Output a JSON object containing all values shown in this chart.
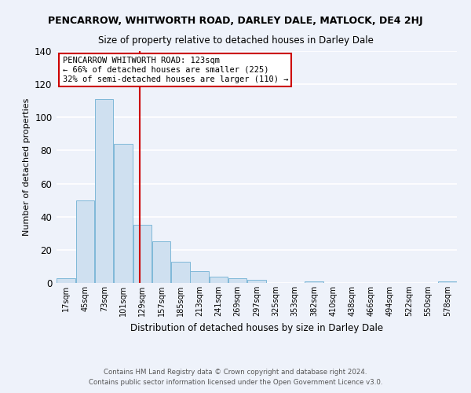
{
  "title": "PENCARROW, WHITWORTH ROAD, DARLEY DALE, MATLOCK, DE4 2HJ",
  "subtitle": "Size of property relative to detached houses in Darley Dale",
  "xlabel": "Distribution of detached houses by size in Darley Dale",
  "ylabel": "Number of detached properties",
  "bar_color": "#cfe0f0",
  "bar_edge_color": "#7fb8d8",
  "background_color": "#eef2fa",
  "grid_color": "#ffffff",
  "tick_labels": [
    "17sqm",
    "45sqm",
    "73sqm",
    "101sqm",
    "129sqm",
    "157sqm",
    "185sqm",
    "213sqm",
    "241sqm",
    "269sqm",
    "297sqm",
    "325sqm",
    "353sqm",
    "382sqm",
    "410sqm",
    "438sqm",
    "466sqm",
    "494sqm",
    "522sqm",
    "550sqm",
    "578sqm"
  ],
  "bar_heights": [
    3,
    50,
    111,
    84,
    35,
    25,
    13,
    7,
    4,
    3,
    2,
    0,
    0,
    1,
    0,
    0,
    0,
    0,
    0,
    0,
    1
  ],
  "vline_x": 3.857,
  "vline_color": "#cc0000",
  "ylim": [
    0,
    140
  ],
  "yticks": [
    0,
    20,
    40,
    60,
    80,
    100,
    120,
    140
  ],
  "annotation_title": "PENCARROW WHITWORTH ROAD: 123sqm",
  "annotation_line1": "← 66% of detached houses are smaller (225)",
  "annotation_line2": "32% of semi-detached houses are larger (110) →",
  "annotation_box_color": "#ffffff",
  "annotation_box_edge": "#cc0000",
  "footer1": "Contains HM Land Registry data © Crown copyright and database right 2024.",
  "footer2": "Contains public sector information licensed under the Open Government Licence v3.0."
}
